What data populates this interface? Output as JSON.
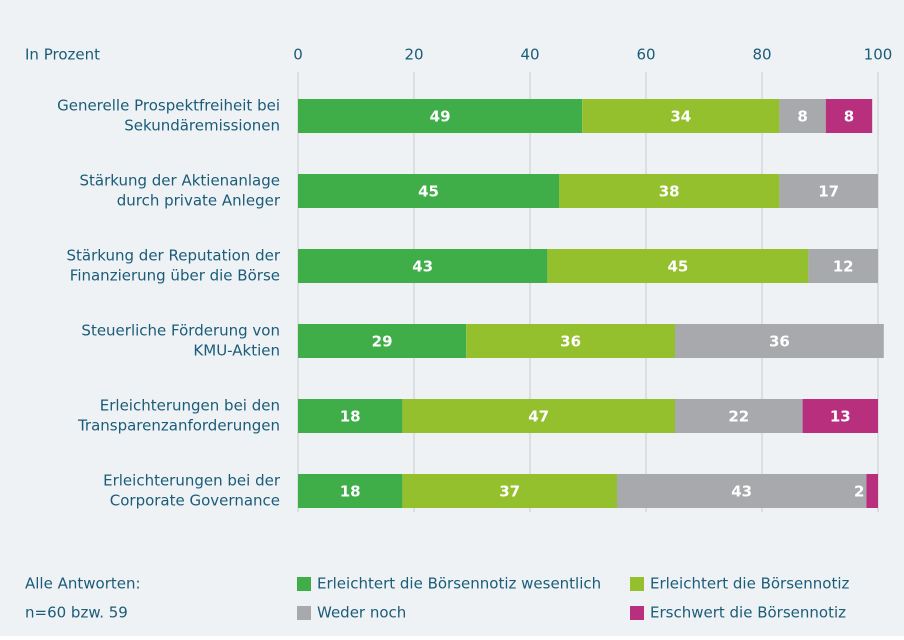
{
  "chart_data": {
    "type": "stacked-bar-horizontal",
    "axis_label": "In Prozent",
    "categories": [
      [
        "Generelle Prospektfreiheit bei",
        "Sekundäremissionen"
      ],
      [
        "Stärkung der Aktienanlage",
        "durch private Anleger"
      ],
      [
        "Stärkung der Reputation der",
        "Finanzierung über die Börse"
      ],
      [
        "Steuerliche Förderung von",
        "KMU-Aktien"
      ],
      [
        "Erleichterungen bei den",
        "Transparenzanforderungen"
      ],
      [
        "Erleichterungen bei der",
        "Corporate Governance"
      ]
    ],
    "series": [
      {
        "name": "Erleichtert die Börsennotiz wesentlich",
        "color": "#3fae49",
        "values": [
          49,
          45,
          43,
          29,
          18,
          18
        ]
      },
      {
        "name": "Erleichtert die Börsennotiz",
        "color": "#95c02e",
        "values": [
          34,
          38,
          45,
          36,
          47,
          37
        ]
      },
      {
        "name": "Weder noch",
        "color": "#a8a9ac",
        "values": [
          8,
          17,
          12,
          36,
          22,
          43
        ]
      },
      {
        "name": "Erschwert die Börsennotiz",
        "color": "#b8307d",
        "values": [
          8,
          0,
          0,
          0,
          13,
          2
        ]
      }
    ],
    "xlim": [
      0,
      100
    ],
    "xticks": [
      0,
      20,
      40,
      60,
      80,
      100
    ],
    "grid": true,
    "note": [
      "Alle Antworten:",
      "n=60 bzw. 59"
    ]
  }
}
